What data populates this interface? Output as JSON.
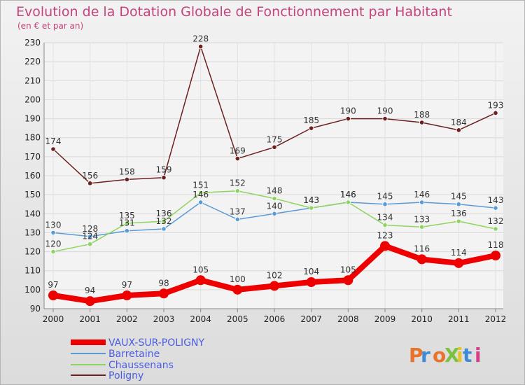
{
  "chart_data": {
    "type": "line",
    "title": "Evolution de la Dotation Globale de Fonctionnement par Habitant",
    "subtitle": "(en € et par an)",
    "x": [
      "2000",
      "2001",
      "2002",
      "2003",
      "2004",
      "2005",
      "2006",
      "2007",
      "2008",
      "2009",
      "2010",
      "2011",
      "2012"
    ],
    "ylim": [
      90,
      230
    ],
    "yticks": [
      90,
      100,
      110,
      120,
      130,
      140,
      150,
      160,
      170,
      180,
      190,
      200,
      210,
      220,
      230
    ],
    "grid": true,
    "legend_position": "bottom-left",
    "series": [
      {
        "name": "VAUX-SUR-POLIGNY",
        "color": "#ee0000",
        "values": [
          97,
          94,
          97,
          98,
          105,
          100,
          102,
          104,
          105,
          123,
          116,
          114,
          118
        ]
      },
      {
        "name": "Barretaine",
        "color": "#5b9bd5",
        "values": [
          130,
          128,
          131,
          132,
          146,
          137,
          140,
          143,
          146,
          145,
          146,
          145,
          143
        ]
      },
      {
        "name": "Chaussenans",
        "color": "#8ed460",
        "values": [
          120,
          124,
          135,
          136,
          151,
          152,
          148,
          143,
          146,
          134,
          133,
          136,
          132
        ]
      },
      {
        "name": "Poligny",
        "color": "#6b1f1f",
        "values": [
          174,
          156,
          158,
          159,
          228,
          169,
          175,
          185,
          190,
          190,
          188,
          184,
          193
        ]
      }
    ]
  },
  "logo": {
    "text": "ProXiti"
  }
}
